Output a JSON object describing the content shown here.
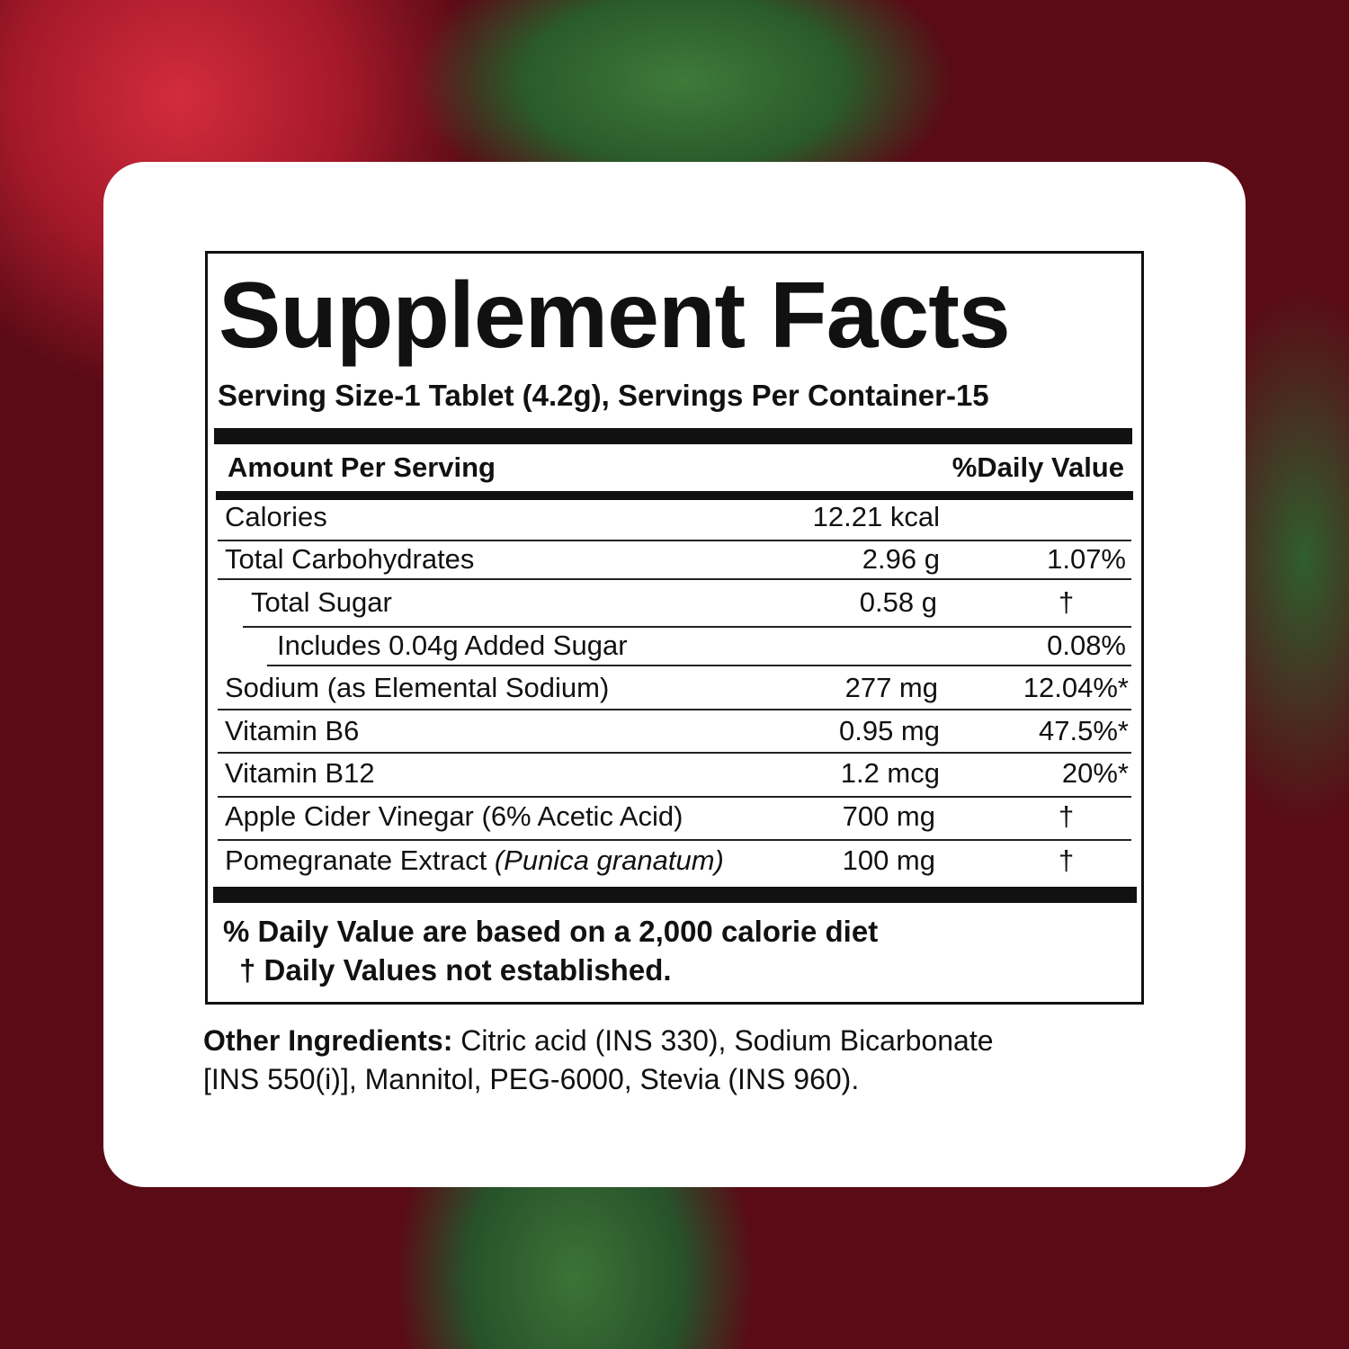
{
  "title": "Supplement Facts",
  "serving": "Serving Size-1 Tablet (4.2g), Servings Per Container-15",
  "header": {
    "amount": "Amount Per Serving",
    "dv": "%Daily Value"
  },
  "rows": [
    {
      "name": "Calories",
      "amount": "12.21 kcal",
      "dv": ""
    },
    {
      "name": "Total Carbohydrates",
      "amount": "2.96 g",
      "dv": "1.07%"
    },
    {
      "name": "Total Sugar",
      "amount": "0.58 g",
      "dv": "†"
    },
    {
      "name": "Includes 0.04g Added Sugar",
      "amount": "",
      "dv": "0.08%"
    },
    {
      "name": "Sodium (as Elemental Sodium)",
      "amount": "277 mg",
      "dv": "12.04%*"
    },
    {
      "name": "Vitamin B6",
      "amount": "0.95 mg",
      "dv": "47.5%*"
    },
    {
      "name": "Vitamin B12",
      "amount": "1.2 mcg",
      "dv": "20%*"
    },
    {
      "name": "Apple Cider Vinegar (6% Acetic Acid)",
      "amount": "700 mg",
      "dv": "†"
    },
    {
      "name": "Pomegranate Extract",
      "name_italic": "(Punica granatum)",
      "amount": "100 mg",
      "dv": "†"
    }
  ],
  "footnotes": [
    "% Daily Value are based on a 2,000 calorie diet",
    "† Daily Values not established."
  ],
  "other_ingredients": {
    "label": "Other Ingredients:",
    "line1": " Citric acid (INS 330), Sodium Bicarbonate",
    "line2": "[INS 550(i)], Mannitol, PEG-6000, Stevia (INS 960)."
  }
}
